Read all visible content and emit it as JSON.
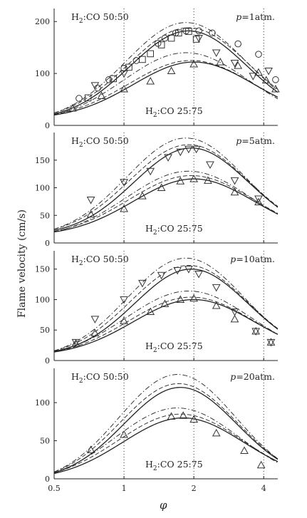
{
  "figure": {
    "ylabel": "Flame velocity (cm/s)",
    "xlabel": "φ",
    "x_scale": "log",
    "xlim": [
      0.5,
      4.6
    ],
    "x_ticks": [
      0.5,
      1,
      2,
      4
    ],
    "x_tick_labels": [
      "0.5",
      "1",
      "2",
      "4"
    ],
    "dotted_verticals": [
      1,
      2,
      4
    ]
  },
  "chart_data": [
    {
      "type": "line",
      "pressure_label": "p=1atm.",
      "upper_label": "H2:CO 50:50",
      "lower_label": "H2:CO 25:75",
      "ylim": [
        0,
        225
      ],
      "y_ticks": [
        0,
        100,
        200
      ],
      "series": [
        {
          "group": "50:50",
          "style": "solid",
          "peak_x": 1.9,
          "peak_y": 182,
          "width": 0.58,
          "y_at_0_5": 22
        },
        {
          "group": "50:50",
          "style": "dash",
          "peak_x": 1.9,
          "peak_y": 188,
          "width": 0.6,
          "y_at_0_5": 24
        },
        {
          "group": "50:50",
          "style": "dashdot",
          "peak_x": 1.85,
          "peak_y": 198,
          "width": 0.6,
          "y_at_0_5": 24
        },
        {
          "group": "25:75",
          "style": "solid",
          "peak_x": 2.0,
          "peak_y": 122,
          "width": 0.6,
          "y_at_0_5": 20
        },
        {
          "group": "25:75",
          "style": "dash",
          "peak_x": 1.95,
          "peak_y": 125,
          "width": 0.62,
          "y_at_0_5": 21
        },
        {
          "group": "25:75",
          "style": "dashdot",
          "peak_x": 1.85,
          "peak_y": 140,
          "width": 0.62,
          "y_at_0_5": 20
        }
      ],
      "markers": [
        {
          "shape": "circle",
          "x": [
            0.64,
            0.77,
            0.86,
            1.0,
            1.13,
            1.4,
            1.5,
            1.67,
            1.85,
            2.1,
            2.4,
            3.1,
            3.8,
            4.5
          ],
          "y": [
            52,
            72,
            88,
            110,
            125,
            158,
            168,
            178,
            182,
            182,
            178,
            157,
            137,
            88
          ]
        },
        {
          "shape": "square",
          "x": [
            0.7,
            0.9,
            1.05,
            1.2,
            1.3,
            1.45,
            1.6,
            1.72,
            1.9,
            2.05
          ],
          "y": [
            53,
            90,
            112,
            127,
            138,
            155,
            168,
            178,
            181,
            166
          ]
        },
        {
          "shape": "tri-down",
          "x": [
            0.75,
            1.0,
            2.1,
            2.5,
            3.0,
            3.6,
            4.2
          ],
          "y": [
            77,
            100,
            168,
            140,
            120,
            95,
            105
          ]
        },
        {
          "shape": "tri-up",
          "x": [
            0.6,
            0.8,
            1.0,
            1.3,
            1.6,
            2.0,
            2.6,
            3.1,
            3.8,
            4.1,
            4.5
          ],
          "y": [
            33,
            57,
            70,
            85,
            105,
            118,
            122,
            115,
            102,
            87,
            70
          ]
        }
      ]
    },
    {
      "type": "line",
      "pressure_label": "p=5atm.",
      "upper_label": "H2:CO 50:50",
      "lower_label": "H2:CO 25:75",
      "ylim": [
        0,
        200
      ],
      "y_ticks": [
        0,
        50,
        100,
        150
      ],
      "series": [
        {
          "group": "50:50",
          "style": "solid",
          "peak_x": 1.95,
          "peak_y": 172,
          "width": 0.57,
          "y_at_0_5": 23
        },
        {
          "group": "50:50",
          "style": "dash",
          "peak_x": 1.9,
          "peak_y": 178,
          "width": 0.59,
          "y_at_0_5": 25
        },
        {
          "group": "50:50",
          "style": "dashdot",
          "peak_x": 1.85,
          "peak_y": 190,
          "width": 0.59,
          "y_at_0_5": 25
        },
        {
          "group": "25:75",
          "style": "solid",
          "peak_x": 2.0,
          "peak_y": 116,
          "width": 0.6,
          "y_at_0_5": 20
        },
        {
          "group": "25:75",
          "style": "dash",
          "peak_x": 1.95,
          "peak_y": 122,
          "width": 0.62,
          "y_at_0_5": 21
        },
        {
          "group": "25:75",
          "style": "dashdot",
          "peak_x": 1.9,
          "peak_y": 130,
          "width": 0.62,
          "y_at_0_5": 20
        }
      ],
      "markers": [
        {
          "shape": "tri-down",
          "x": [
            0.72,
            1.0,
            1.3,
            1.55,
            1.75,
            1.9,
            2.05,
            2.35,
            3.0,
            3.8
          ],
          "y": [
            78,
            110,
            130,
            155,
            165,
            170,
            170,
            142,
            113,
            80
          ]
        },
        {
          "shape": "tri-up",
          "x": [
            0.72,
            1.0,
            1.2,
            1.45,
            1.75,
            2.0,
            2.3,
            3.0,
            3.8
          ],
          "y": [
            52,
            62,
            85,
            100,
            112,
            116,
            113,
            92,
            74
          ]
        }
      ]
    },
    {
      "type": "line",
      "pressure_label": "p=10atm.",
      "upper_label": "H2:CO 50:50",
      "lower_label": "H2:CO 25:75",
      "ylim": [
        0,
        180
      ],
      "y_ticks": [
        0,
        50,
        100,
        150
      ],
      "series": [
        {
          "group": "50:50",
          "style": "solid",
          "peak_x": 1.95,
          "peak_y": 150,
          "width": 0.56,
          "y_at_0_5": 15
        },
        {
          "group": "50:50",
          "style": "dash",
          "peak_x": 1.9,
          "peak_y": 156,
          "width": 0.58,
          "y_at_0_5": 16
        },
        {
          "group": "50:50",
          "style": "dashdot",
          "peak_x": 1.85,
          "peak_y": 168,
          "width": 0.58,
          "y_at_0_5": 16
        },
        {
          "group": "25:75",
          "style": "solid",
          "peak_x": 2.0,
          "peak_y": 100,
          "width": 0.6,
          "y_at_0_5": 14
        },
        {
          "group": "25:75",
          "style": "dash",
          "peak_x": 1.95,
          "peak_y": 104,
          "width": 0.62,
          "y_at_0_5": 14
        },
        {
          "group": "25:75",
          "style": "dashdot",
          "peak_x": 1.9,
          "peak_y": 114,
          "width": 0.62,
          "y_at_0_5": 14
        }
      ],
      "markers": [
        {
          "shape": "tri-down",
          "x": [
            0.62,
            0.75,
            1.0,
            1.2,
            1.45,
            1.7,
            1.9,
            2.1,
            2.5,
            3.0,
            3.7,
            4.3
          ],
          "y": [
            30,
            68,
            100,
            127,
            140,
            148,
            150,
            142,
            120,
            80,
            48,
            30
          ]
        },
        {
          "shape": "tri-up",
          "x": [
            0.62,
            0.75,
            1.0,
            1.3,
            1.5,
            1.75,
            2.0,
            2.5,
            3.0,
            3.7,
            4.3
          ],
          "y": [
            28,
            45,
            65,
            80,
            93,
            100,
            102,
            90,
            68,
            48,
            30
          ]
        }
      ]
    },
    {
      "type": "line",
      "pressure_label": "p=20atm.",
      "upper_label": "H2:CO 50:50",
      "lower_label": "H2:CO 25:75",
      "ylim": [
        0,
        145
      ],
      "y_ticks": [
        0,
        50,
        100
      ],
      "series": [
        {
          "group": "50:50",
          "style": "solid",
          "peak_x": 1.75,
          "peak_y": 120,
          "width": 0.56,
          "y_at_0_5": 8
        },
        {
          "group": "50:50",
          "style": "dash",
          "peak_x": 1.72,
          "peak_y": 125,
          "width": 0.58,
          "y_at_0_5": 9
        },
        {
          "group": "50:50",
          "style": "dashdot",
          "peak_x": 1.7,
          "peak_y": 137,
          "width": 0.58,
          "y_at_0_5": 9
        },
        {
          "group": "25:75",
          "style": "solid",
          "peak_x": 1.8,
          "peak_y": 80,
          "width": 0.6,
          "y_at_0_5": 7
        },
        {
          "group": "25:75",
          "style": "dash",
          "peak_x": 1.75,
          "peak_y": 85,
          "width": 0.62,
          "y_at_0_5": 8
        },
        {
          "group": "25:75",
          "style": "dashdot",
          "peak_x": 1.7,
          "peak_y": 93,
          "width": 0.62,
          "y_at_0_5": 8
        }
      ],
      "markers": [
        {
          "shape": "tri-up",
          "x": [
            0.72,
            1.0,
            1.6,
            1.8,
            2.0,
            2.5,
            3.3,
            3.9
          ],
          "y": [
            38,
            58,
            82,
            83,
            78,
            60,
            37,
            18
          ]
        }
      ]
    }
  ]
}
